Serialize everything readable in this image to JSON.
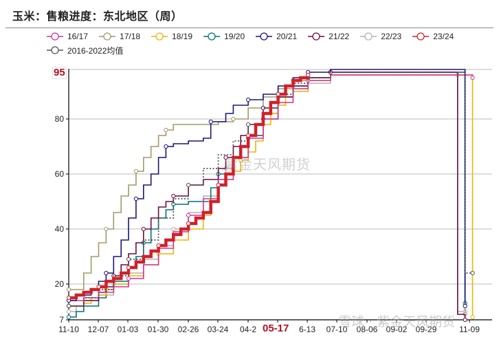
{
  "title": "玉米：售粮进度：东北地区（周）",
  "legend": [
    {
      "label": "16/17",
      "color": "#d6309a"
    },
    {
      "label": "17/18",
      "color": "#a09a6a"
    },
    {
      "label": "18/19",
      "color": "#f0b400"
    },
    {
      "label": "19/20",
      "color": "#00707a"
    },
    {
      "label": "20/21",
      "color": "#1c1478"
    },
    {
      "label": "21/22",
      "color": "#6a0a40"
    },
    {
      "label": "22/23",
      "color": "#b8b0a8"
    },
    {
      "label": "23/24",
      "color": "#d0202a"
    },
    {
      "label": "2016-2022均值",
      "color": "#555555"
    }
  ],
  "highlight": {
    "y_value_label": "95",
    "x_label": "05-17"
  },
  "watermark": "紫金天风期货",
  "watermark_footer": "雪球 · 紫金天风期货",
  "chart_data": {
    "type": "line",
    "title": "玉米：售粮进度：东北地区（周）",
    "xlabel": "",
    "ylabel": "",
    "ylim": [
      7,
      98
    ],
    "y_ticks": [
      7,
      20,
      40,
      60,
      80
    ],
    "x_tick_labels": [
      "11-10",
      "12-07",
      "01-03",
      "01-30",
      "02-26",
      "03-24",
      "04-2",
      "05-17",
      "6-13",
      "07-10",
      "08-06",
      "09-02",
      "09-29",
      "11-09"
    ],
    "grid": true,
    "legend_position": "top",
    "annotations": [
      {
        "text": "95",
        "axis": "y",
        "color": "#b01020"
      },
      {
        "text": "05-17",
        "axis": "x",
        "color": "#b01020"
      }
    ],
    "week_index_note": "x = weeks since 11-10 (1 tick = 4 weeks; 11-09 ≈ week 54)",
    "series": [
      {
        "name": "16/17",
        "color": "#d6309a",
        "points": [
          [
            0,
            14
          ],
          [
            2,
            15
          ],
          [
            4,
            17
          ],
          [
            6,
            19
          ],
          [
            8,
            22
          ],
          [
            10,
            27
          ],
          [
            12,
            33
          ],
          [
            14,
            39
          ],
          [
            16,
            45
          ],
          [
            18,
            51
          ],
          [
            20,
            58
          ],
          [
            22,
            66
          ],
          [
            24,
            73
          ],
          [
            26,
            80
          ],
          [
            28,
            86
          ],
          [
            30,
            91
          ],
          [
            32,
            94
          ],
          [
            35,
            96
          ],
          [
            54,
            96
          ],
          [
            54,
            95
          ]
        ]
      },
      {
        "name": "17/18",
        "color": "#a09a6a",
        "points": [
          [
            0,
            18
          ],
          [
            2,
            24
          ],
          [
            3,
            30
          ],
          [
            4,
            35
          ],
          [
            5,
            40
          ],
          [
            6,
            46
          ],
          [
            7,
            52
          ],
          [
            8,
            56
          ],
          [
            9,
            61
          ],
          [
            10,
            66
          ],
          [
            11,
            70
          ],
          [
            12,
            74
          ],
          [
            13,
            76
          ],
          [
            14,
            78
          ],
          [
            16,
            78
          ],
          [
            20,
            79
          ],
          [
            22,
            80
          ],
          [
            24,
            84
          ],
          [
            26,
            88
          ],
          [
            28,
            91
          ],
          [
            30,
            94
          ],
          [
            32,
            95
          ],
          [
            35,
            96
          ],
          [
            53,
            96
          ],
          [
            53,
            9
          ]
        ]
      },
      {
        "name": "18/19",
        "color": "#f0b400",
        "points": [
          [
            0,
            12
          ],
          [
            2,
            13
          ],
          [
            3,
            15
          ],
          [
            4,
            16
          ],
          [
            5,
            18
          ],
          [
            6,
            20
          ],
          [
            8,
            23
          ],
          [
            10,
            27
          ],
          [
            12,
            31
          ],
          [
            14,
            36
          ],
          [
            16,
            40
          ],
          [
            18,
            45
          ],
          [
            19,
            50
          ],
          [
            20,
            56
          ],
          [
            21,
            58
          ],
          [
            22,
            61
          ],
          [
            23,
            65
          ],
          [
            24,
            68
          ],
          [
            25,
            72
          ],
          [
            26,
            78
          ],
          [
            27,
            82
          ],
          [
            28,
            85
          ],
          [
            29,
            88
          ],
          [
            30,
            90
          ],
          [
            32,
            94
          ],
          [
            35,
            96
          ],
          [
            54,
            96
          ],
          [
            54,
            8
          ]
        ]
      },
      {
        "name": "19/20",
        "color": "#00707a",
        "points": [
          [
            0,
            8
          ],
          [
            1,
            10
          ],
          [
            2,
            12
          ],
          [
            4,
            15
          ],
          [
            5,
            18
          ],
          [
            6,
            21
          ],
          [
            8,
            26
          ],
          [
            9,
            30
          ],
          [
            10,
            35
          ],
          [
            11,
            40
          ],
          [
            12,
            44
          ],
          [
            13,
            47
          ],
          [
            14,
            49
          ],
          [
            16,
            50
          ],
          [
            18,
            50
          ],
          [
            19,
            55
          ],
          [
            20,
            60
          ],
          [
            22,
            66
          ],
          [
            23,
            70
          ],
          [
            24,
            74
          ],
          [
            26,
            80
          ],
          [
            28,
            88
          ],
          [
            30,
            92
          ],
          [
            32,
            95
          ],
          [
            35,
            97
          ],
          [
            53,
            97
          ],
          [
            53,
            13
          ]
        ]
      },
      {
        "name": "20/21",
        "color": "#1c1478",
        "points": [
          [
            0,
            14
          ],
          [
            1,
            16
          ],
          [
            3,
            18
          ],
          [
            4,
            21
          ],
          [
            5,
            24
          ],
          [
            6,
            30
          ],
          [
            7,
            36
          ],
          [
            8,
            44
          ],
          [
            9,
            51
          ],
          [
            10,
            56
          ],
          [
            11,
            60
          ],
          [
            12,
            66
          ],
          [
            13,
            70
          ],
          [
            14,
            71
          ],
          [
            16,
            72
          ],
          [
            18,
            73
          ],
          [
            19,
            79
          ],
          [
            20,
            79
          ],
          [
            21,
            82
          ],
          [
            22,
            85
          ],
          [
            24,
            87
          ],
          [
            26,
            89
          ],
          [
            28,
            92
          ],
          [
            30,
            95
          ],
          [
            32,
            97
          ],
          [
            35,
            98
          ],
          [
            53,
            98
          ],
          [
            53,
            12
          ]
        ]
      },
      {
        "name": "21/22",
        "color": "#6a0a40",
        "points": [
          [
            0,
            12
          ],
          [
            2,
            14
          ],
          [
            4,
            17
          ],
          [
            5,
            19
          ],
          [
            6,
            23
          ],
          [
            7,
            27
          ],
          [
            8,
            31
          ],
          [
            9,
            35
          ],
          [
            10,
            40
          ],
          [
            11,
            44
          ],
          [
            12,
            48
          ],
          [
            13,
            50
          ],
          [
            14,
            52
          ],
          [
            16,
            56
          ],
          [
            18,
            58
          ],
          [
            20,
            62
          ],
          [
            21,
            66
          ],
          [
            22,
            70
          ],
          [
            23,
            74
          ],
          [
            24,
            78
          ],
          [
            26,
            84
          ],
          [
            28,
            88
          ],
          [
            30,
            92
          ],
          [
            32,
            95
          ],
          [
            35,
            97
          ],
          [
            52,
            97
          ],
          [
            52,
            9
          ],
          [
            53,
            9
          ],
          [
            53,
            7
          ]
        ]
      },
      {
        "name": "22/23",
        "color": "#b8b0a8",
        "points": [
          [
            0,
            10
          ],
          [
            1,
            12
          ],
          [
            2,
            14
          ],
          [
            4,
            16
          ],
          [
            6,
            20
          ],
          [
            8,
            24
          ],
          [
            10,
            29
          ],
          [
            12,
            34
          ],
          [
            14,
            40
          ],
          [
            16,
            46
          ],
          [
            18,
            52
          ],
          [
            20,
            58
          ],
          [
            21,
            62
          ],
          [
            22,
            66
          ],
          [
            24,
            74
          ],
          [
            26,
            82
          ],
          [
            28,
            88
          ],
          [
            30,
            91
          ],
          [
            32,
            93
          ],
          [
            35,
            96
          ],
          [
            52,
            96
          ],
          [
            52,
            10
          ],
          [
            53,
            10
          ]
        ]
      },
      {
        "name": "23/24",
        "color": "#d0202a",
        "points": [
          [
            0,
            15
          ],
          [
            1,
            16
          ],
          [
            2,
            17
          ],
          [
            3,
            18
          ],
          [
            4,
            19
          ],
          [
            5,
            21
          ],
          [
            6,
            22
          ],
          [
            7,
            24
          ],
          [
            8,
            26
          ],
          [
            9,
            28
          ],
          [
            10,
            30
          ],
          [
            11,
            32
          ],
          [
            12,
            34
          ],
          [
            13,
            36
          ],
          [
            14,
            38
          ],
          [
            15,
            40
          ],
          [
            16,
            42
          ],
          [
            17,
            44
          ],
          [
            18,
            46
          ],
          [
            19,
            50
          ],
          [
            20,
            56
          ],
          [
            21,
            60
          ],
          [
            22,
            66
          ],
          [
            23,
            70
          ],
          [
            24,
            74
          ],
          [
            25,
            78
          ],
          [
            26,
            82
          ],
          [
            27,
            86
          ],
          [
            28,
            89
          ],
          [
            29,
            92
          ],
          [
            30,
            94
          ],
          [
            31,
            95
          ],
          [
            32,
            96
          ]
        ]
      },
      {
        "name": "2016-2022均值",
        "color": "#555555",
        "dashed": true,
        "points": [
          [
            0,
            12
          ],
          [
            2,
            15
          ],
          [
            4,
            18
          ],
          [
            6,
            23
          ],
          [
            8,
            29
          ],
          [
            10,
            36
          ],
          [
            12,
            44
          ],
          [
            14,
            51
          ],
          [
            16,
            56
          ],
          [
            18,
            62
          ],
          [
            20,
            67
          ],
          [
            22,
            72
          ],
          [
            24,
            78
          ],
          [
            26,
            84
          ],
          [
            28,
            89
          ],
          [
            30,
            93
          ],
          [
            32,
            95
          ],
          [
            35,
            97
          ],
          [
            53,
            97
          ],
          [
            53,
            24
          ],
          [
            54,
            24
          ]
        ]
      }
    ]
  }
}
